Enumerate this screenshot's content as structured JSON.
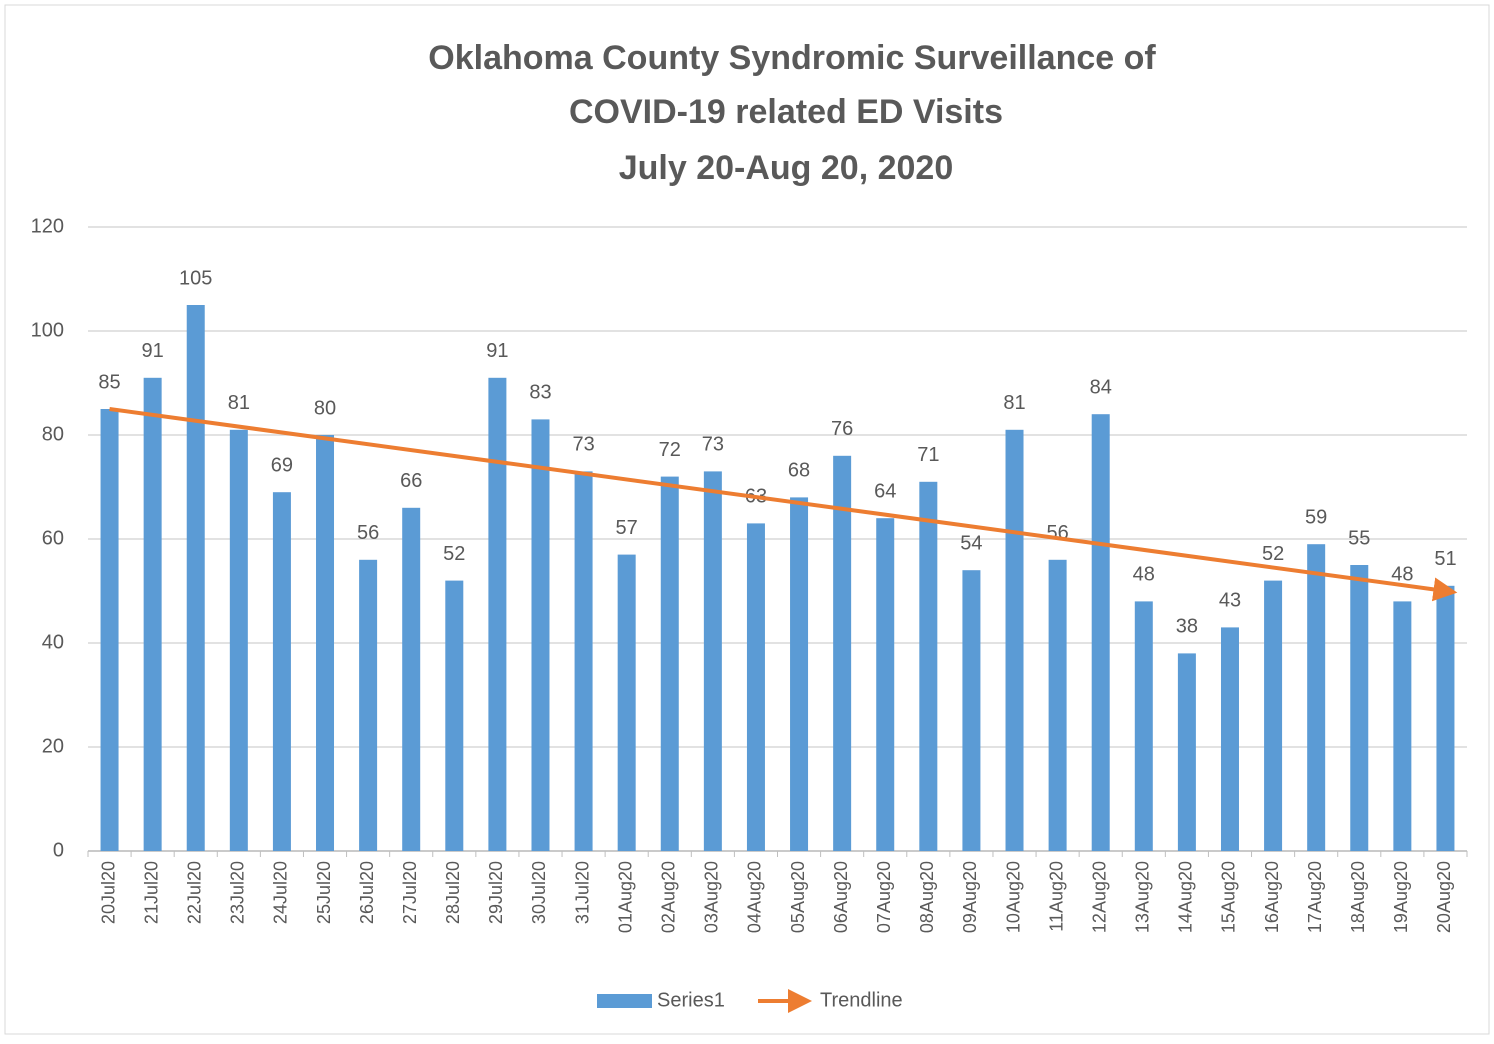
{
  "chart_data": {
    "type": "bar",
    "title": [
      "Oklahoma County Syndromic Surveillance of",
      "COVID-19 related ED Visits",
      "July 20-Aug 20, 2020"
    ],
    "categories": [
      "20Jul20",
      "21Jul20",
      "22Jul20",
      "23Jul20",
      "24Jul20",
      "25Jul20",
      "26Jul20",
      "27Jul20",
      "28Jul20",
      "29Jul20",
      "30Jul20",
      "31Jul20",
      "01Aug20",
      "02Aug20",
      "03Aug20",
      "04Aug20",
      "05Aug20",
      "06Aug20",
      "07Aug20",
      "08Aug20",
      "09Aug20",
      "10Aug20",
      "11Aug20",
      "12Aug20",
      "13Aug20",
      "14Aug20",
      "15Aug20",
      "16Aug20",
      "17Aug20",
      "18Aug20",
      "19Aug20",
      "20Aug20"
    ],
    "series": [
      {
        "name": "Series1",
        "color": "#5b9bd5",
        "values": [
          85,
          91,
          105,
          81,
          69,
          80,
          56,
          66,
          52,
          91,
          83,
          73,
          57,
          72,
          73,
          63,
          68,
          76,
          64,
          71,
          54,
          81,
          56,
          84,
          48,
          38,
          43,
          52,
          59,
          55,
          48,
          51
        ]
      }
    ],
    "trendline": {
      "name": "Trendline",
      "color": "#ed7d31",
      "categories": [
        "20Jul20",
        "20Aug20"
      ],
      "values": [
        85,
        50
      ]
    },
    "ylim": [
      0,
      120
    ],
    "yticks": [
      0,
      20,
      40,
      60,
      80,
      100,
      120
    ],
    "grid": true,
    "legend": "bottom"
  }
}
